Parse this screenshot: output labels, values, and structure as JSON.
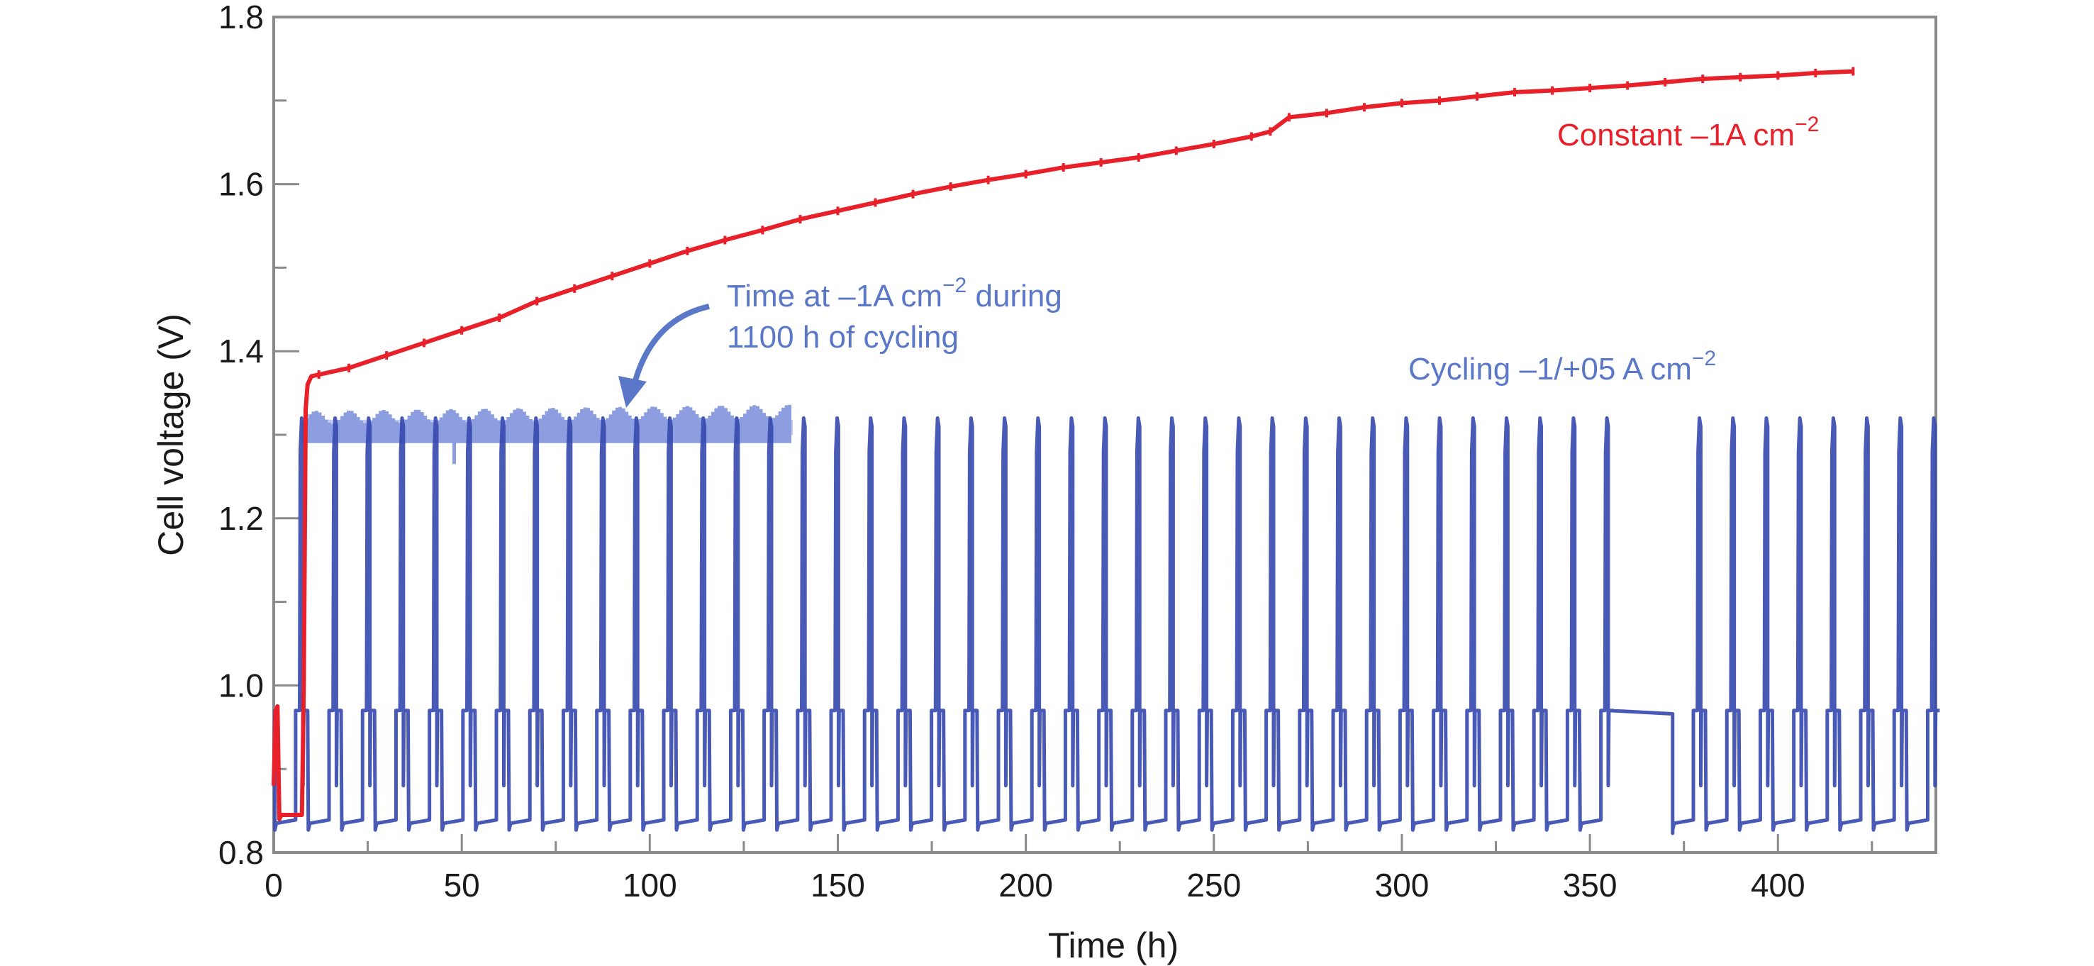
{
  "chart_data": {
    "type": "line",
    "title": "",
    "xlabel": "Time (h)",
    "ylabel": "Cell voltage (V)",
    "xlim": [
      0,
      442
    ],
    "ylim": [
      0.8,
      1.8
    ],
    "xticks": [
      0,
      50,
      100,
      150,
      200,
      250,
      300,
      350,
      400
    ],
    "xtick_labels": [
      "0",
      "50",
      "100",
      "150",
      "200",
      "250",
      "300",
      "350",
      "400"
    ],
    "xminor_step": 25,
    "yticks": [
      0.8,
      1.0,
      1.2,
      1.4,
      1.6,
      1.8
    ],
    "ytick_labels": [
      "0.8",
      "1.0",
      "1.2",
      "1.4",
      "1.6",
      "1.8"
    ],
    "yminor_step": 0.1,
    "grid": false,
    "legend": "none",
    "colors": {
      "constant": "#e8202a",
      "cycling": "#3a4bb0",
      "cycling_highlight": "#8c9de0",
      "annotation_blue": "#5a77c8",
      "annotation_red": "#e8202a",
      "axis": "#8a8a8a"
    },
    "series": [
      {
        "name": "Constant -1A cm-2",
        "x": [
          0,
          0.5,
          1.0,
          1.5,
          2,
          7.5,
          8,
          8.5,
          9,
          10,
          12,
          20,
          30,
          40,
          50,
          60,
          70,
          80,
          90,
          100,
          110,
          120,
          130,
          140,
          150,
          160,
          170,
          180,
          190,
          200,
          210,
          220,
          230,
          240,
          250,
          260,
          265,
          270,
          280,
          290,
          300,
          310,
          320,
          330,
          340,
          350,
          360,
          370,
          380,
          390,
          400,
          410,
          420
        ],
        "y": [
          0.88,
          0.97,
          0.975,
          0.84,
          0.845,
          0.845,
          1.0,
          1.33,
          1.36,
          1.37,
          1.372,
          1.38,
          1.395,
          1.41,
          1.425,
          1.44,
          1.46,
          1.475,
          1.49,
          1.505,
          1.52,
          1.533,
          1.545,
          1.558,
          1.568,
          1.578,
          1.588,
          1.597,
          1.605,
          1.612,
          1.62,
          1.626,
          1.632,
          1.64,
          1.648,
          1.657,
          1.663,
          1.68,
          1.685,
          1.692,
          1.697,
          1.7,
          1.705,
          1.71,
          1.712,
          1.715,
          1.718,
          1.722,
          1.726,
          1.728,
          1.73,
          1.733,
          1.735
        ]
      },
      {
        "name": "Cycling -1/+05 A cm-2",
        "pattern": "periodic square-wave",
        "start_h": 0,
        "end_h": 442,
        "period_h": 8.9,
        "low_V": 0.835,
        "mid_V": 0.97,
        "peak_V": 1.32,
        "rest_segment": {
          "x": [
            355,
            372
          ],
          "y": 0.97
        }
      },
      {
        "name": "Time at -1A cm-2 during 1100 h of cycling",
        "x_range": [
          8,
          138
        ],
        "y_range": [
          1.29,
          1.33
        ]
      }
    ],
    "annotations": [
      {
        "id": "constant",
        "text": "Constant –1A cm",
        "sup": "−2"
      },
      {
        "id": "cycling",
        "text": "Cycling –1/+05 A cm",
        "sup": "−2"
      },
      {
        "id": "time_at_line1_pre",
        "text": "Time at –1A cm",
        "sup": "−2",
        "post": " during"
      },
      {
        "id": "time_at_line2",
        "text": "1100 h of cycling"
      }
    ]
  }
}
